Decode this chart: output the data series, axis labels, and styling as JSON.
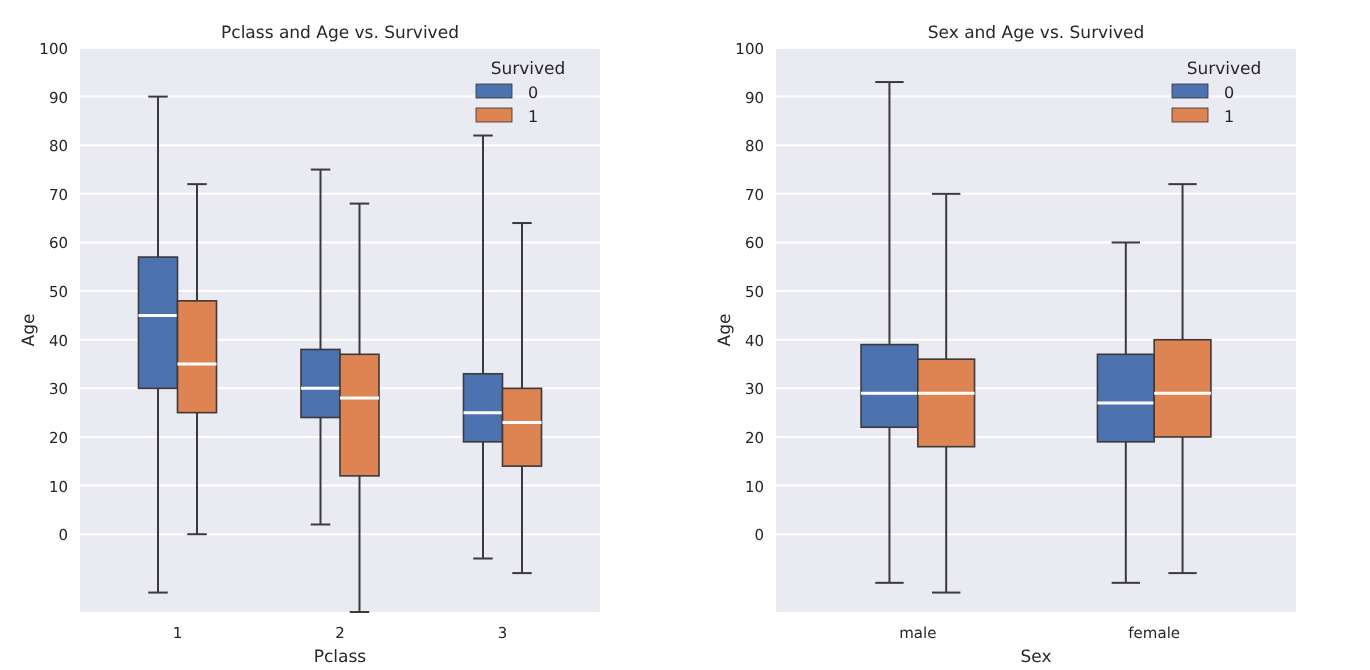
{
  "chart_data": [
    {
      "type": "box",
      "title": "Pclass and Age vs. Survived",
      "xlabel": "Pclass",
      "ylabel": "Age",
      "categories": [
        "1",
        "2",
        "3"
      ],
      "ylim": [
        -16,
        100
      ],
      "yticks": [
        0,
        10,
        20,
        30,
        40,
        50,
        60,
        70,
        80,
        90,
        100
      ],
      "grid": "y",
      "legend": "top right",
      "legend_title": "Survived",
      "series": [
        {
          "name": "0",
          "color": "#4c72b0",
          "boxes": [
            {
              "low": -12,
              "q1": 30,
              "median": 45,
              "q3": 57,
              "high": 90
            },
            {
              "low": 2,
              "q1": 24,
              "median": 30,
              "q3": 38,
              "high": 75
            },
            {
              "low": -5,
              "q1": 19,
              "median": 25,
              "q3": 33,
              "high": 82
            }
          ]
        },
        {
          "name": "1",
          "color": "#dd8452",
          "boxes": [
            {
              "low": 0,
              "q1": 25,
              "median": 35,
              "q3": 48,
              "high": 72
            },
            {
              "low": -16,
              "q1": 12,
              "median": 28,
              "q3": 37,
              "high": 68
            },
            {
              "low": -8,
              "q1": 14,
              "median": 23,
              "q3": 30,
              "high": 64
            }
          ]
        }
      ]
    },
    {
      "type": "box",
      "title": "Sex and Age vs. Survived",
      "xlabel": "Sex",
      "ylabel": "Age",
      "categories": [
        "male",
        "female"
      ],
      "ylim": [
        -16,
        100
      ],
      "yticks": [
        0,
        10,
        20,
        30,
        40,
        50,
        60,
        70,
        80,
        90,
        100
      ],
      "grid": "y",
      "legend": "top right",
      "legend_title": "Survived",
      "series": [
        {
          "name": "0",
          "color": "#4c72b0",
          "boxes": [
            {
              "low": -10,
              "q1": 22,
              "median": 29,
              "q3": 39,
              "high": 93
            },
            {
              "low": -10,
              "q1": 19,
              "median": 27,
              "q3": 37,
              "high": 60
            }
          ]
        },
        {
          "name": "1",
          "color": "#dd8452",
          "boxes": [
            {
              "low": -12,
              "q1": 18,
              "median": 29,
              "q3": 36,
              "high": 70
            },
            {
              "low": -8,
              "q1": 20,
              "median": 29,
              "q3": 40,
              "high": 72
            }
          ]
        }
      ]
    }
  ]
}
